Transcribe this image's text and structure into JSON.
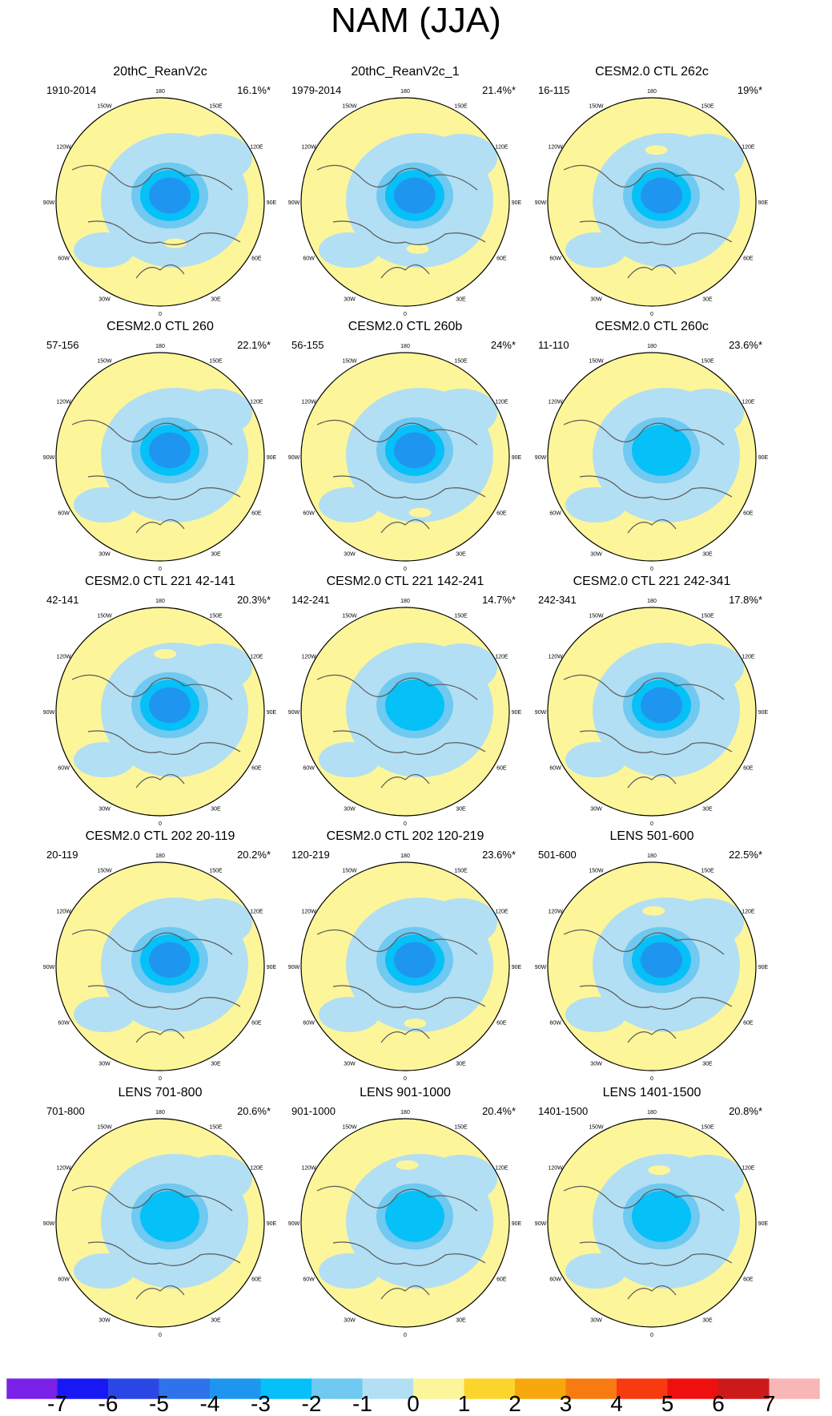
{
  "figure": {
    "title": "NAM (JJA)"
  },
  "chart_data": {
    "type": "heatmap",
    "projection": "north polar stereographic",
    "title": "NAM (JJA)",
    "longitude_labels": [
      "180",
      "150E",
      "120E",
      "90E",
      "60E",
      "30E",
      "0",
      "30W",
      "60W",
      "90W",
      "120W",
      "150W"
    ],
    "panels": [
      {
        "title": "20thC_ReanV2c",
        "range": "1910-2014",
        "percent": "16.1%*",
        "min_value": -4,
        "warm_blobs": [
          {
            "lon": 20,
            "lat": 52,
            "value": 1
          }
        ]
      },
      {
        "title": "20thC_ReanV2c_1",
        "range": "1979-2014",
        "percent": "21.4%*",
        "min_value": -4,
        "warm_blobs": [
          {
            "lon": 15,
            "lat": 48,
            "value": 1
          }
        ]
      },
      {
        "title": "CESM2.0 CTL 262c",
        "range": "16-115",
        "percent": "19%*",
        "min_value": -4,
        "warm_blobs": [
          {
            "lon": 175,
            "lat": 45,
            "value": 1
          }
        ]
      },
      {
        "title": "CESM2.0 CTL 260",
        "range": "57-156",
        "percent": "22.1%*",
        "min_value": -4,
        "warm_blobs": []
      },
      {
        "title": "CESM2.0 CTL 260b",
        "range": "56-155",
        "percent": "24%*",
        "min_value": -4,
        "warm_blobs": [
          {
            "lon": 15,
            "lat": 40,
            "value": 1
          }
        ]
      },
      {
        "title": "CESM2.0 CTL 260c",
        "range": "11-110",
        "percent": "23.6%*",
        "min_value": -3,
        "warm_blobs": []
      },
      {
        "title": "CESM2.0 CTL 221 42-141",
        "range": "42-141",
        "percent": "20.3%*",
        "min_value": -4,
        "warm_blobs": [
          {
            "lon": 175,
            "lat": 40,
            "value": 1
          }
        ]
      },
      {
        "title": "CESM2.0 CTL 221 142-241",
        "range": "142-241",
        "percent": "14.7%*",
        "min_value": -3,
        "warm_blobs": []
      },
      {
        "title": "CESM2.0 CTL 221 242-341",
        "range": "242-341",
        "percent": "17.8%*",
        "min_value": -4,
        "warm_blobs": []
      },
      {
        "title": "CESM2.0 CTL 202 20-119",
        "range": "20-119",
        "percent": "20.2%*",
        "min_value": -4,
        "warm_blobs": []
      },
      {
        "title": "CESM2.0 CTL 202 120-219",
        "range": "120-219",
        "percent": "23.6%*",
        "min_value": -4,
        "warm_blobs": [
          {
            "lon": 10,
            "lat": 40,
            "value": 1
          }
        ]
      },
      {
        "title": "LENS 501-600",
        "range": "501-600",
        "percent": "22.5%*",
        "min_value": -4,
        "warm_blobs": [
          {
            "lon": 178,
            "lat": 42,
            "value": 1
          }
        ]
      },
      {
        "title": "LENS 701-800",
        "range": "701-800",
        "percent": "20.6%*",
        "min_value": -3,
        "warm_blobs": []
      },
      {
        "title": "LENS 901-1000",
        "range": "901-1000",
        "percent": "20.4%*",
        "min_value": -3,
        "warm_blobs": [
          {
            "lon": 178,
            "lat": 40,
            "value": 1
          }
        ]
      },
      {
        "title": "LENS 1401-1500",
        "range": "1401-1500",
        "percent": "20.8%*",
        "min_value": -3,
        "warm_blobs": [
          {
            "lon": 172,
            "lat": 44,
            "value": 1
          }
        ]
      }
    ],
    "colorbar": {
      "bins": 16,
      "labels": [
        "-7",
        "-6",
        "-5",
        "-4",
        "-3",
        "-2",
        "-1",
        "0",
        "1",
        "2",
        "3",
        "4",
        "5",
        "6",
        "7"
      ],
      "colors": [
        "#7b22e8",
        "#1818f5",
        "#2a47e6",
        "#2e73ea",
        "#1e96f0",
        "#06c0f8",
        "#6fc9f0",
        "#b2dff3",
        "#fcf59a",
        "#fcd52c",
        "#f7a80d",
        "#f77b10",
        "#f73a10",
        "#ef0f0f",
        "#cc1a1a",
        "#f8b6b6"
      ]
    }
  }
}
